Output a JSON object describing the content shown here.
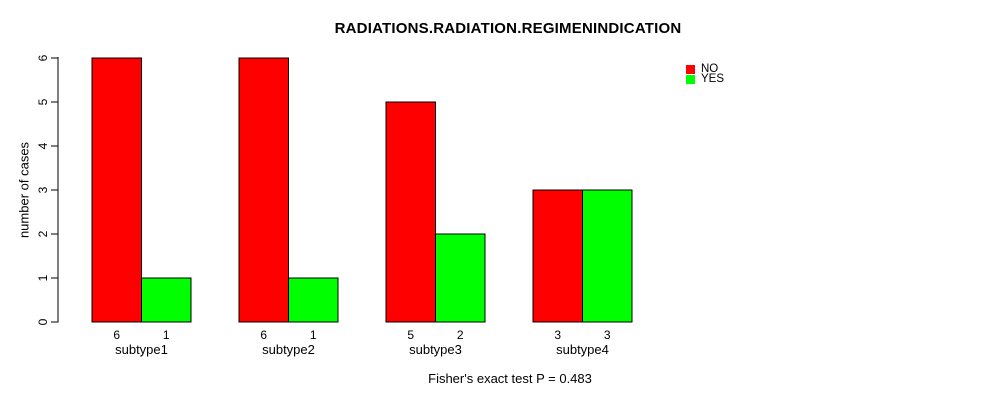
{
  "chart_data": {
    "type": "bar",
    "title": "RADIATIONS.RADIATION.REGIMENINDICATION",
    "ylabel": "number of cases",
    "xlabel": "",
    "footnote": "Fisher's exact test P = 0.483",
    "categories": [
      "subtype1",
      "subtype2",
      "subtype3",
      "subtype4"
    ],
    "series": [
      {
        "name": "NO",
        "color": "#ff0000",
        "values": [
          6,
          6,
          5,
          3
        ]
      },
      {
        "name": "YES",
        "color": "#00ff00",
        "values": [
          1,
          1,
          2,
          3
        ]
      }
    ],
    "bar_value_labels": [
      [
        6,
        1
      ],
      [
        6,
        1
      ],
      [
        5,
        2
      ],
      [
        3,
        3
      ]
    ],
    "yticks": [
      0,
      1,
      2,
      3,
      4,
      5,
      6
    ],
    "ylim": [
      0,
      6
    ],
    "grid": false,
    "legend_position": "top-right",
    "bar_border_color": "#000000",
    "axis_color": "#000000",
    "background_color": "#ffffff"
  }
}
